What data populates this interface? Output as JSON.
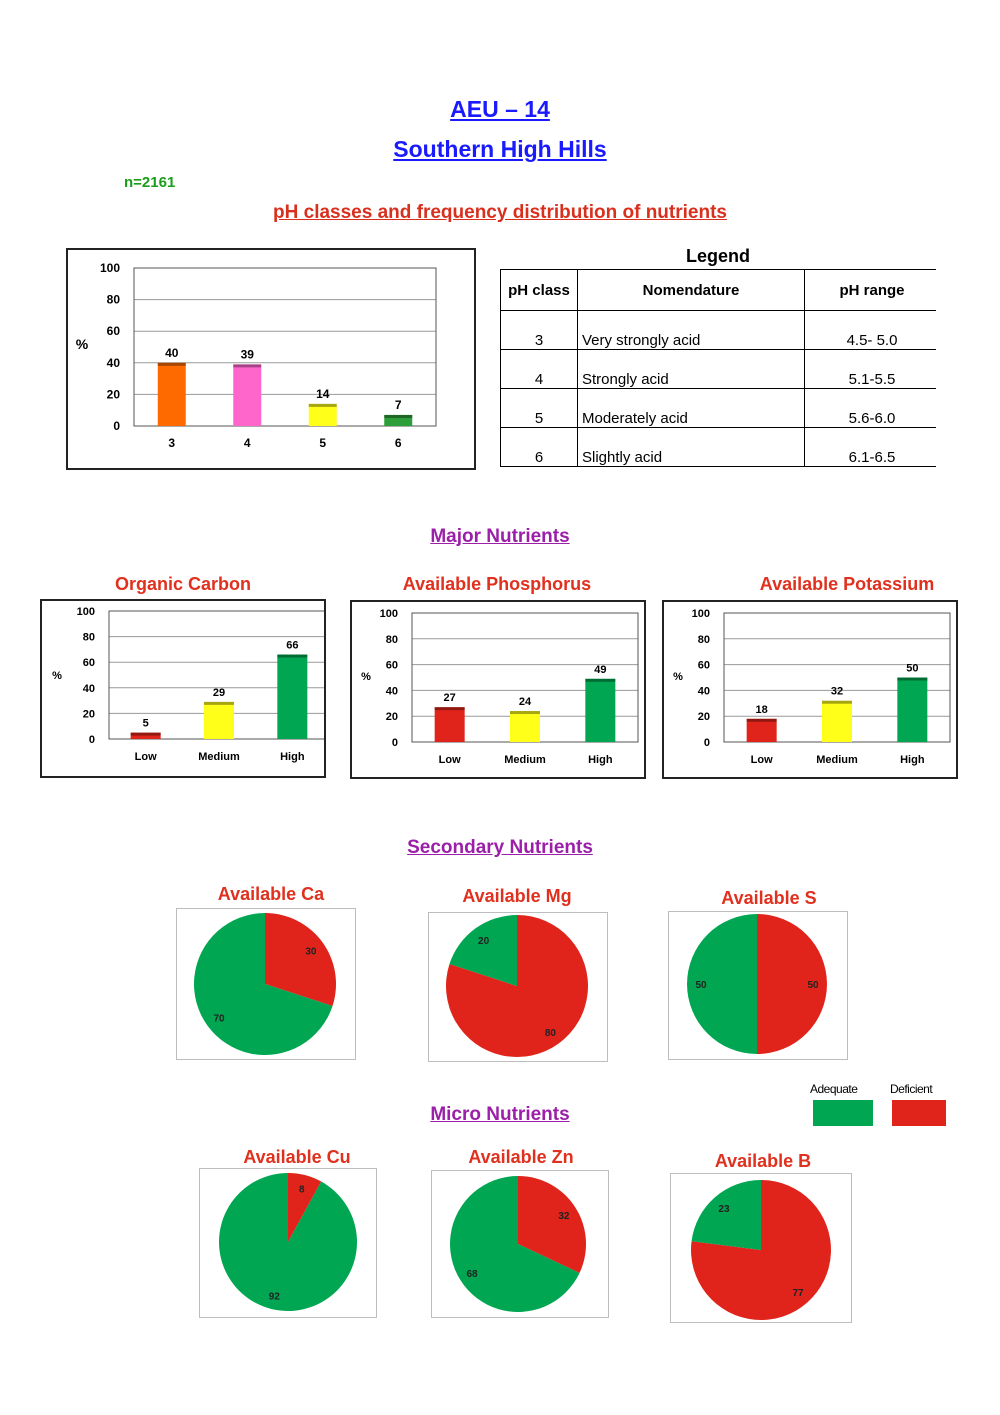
{
  "header": {
    "title": "AEU – 14",
    "subtitle": "Southern High Hills",
    "sample_size": "n=2161",
    "ph_section_title": "pH classes and frequency distribution of nutrients"
  },
  "legend_table": {
    "title": "Legend",
    "headers": [
      "pH class",
      "Nomendature",
      "pH range"
    ],
    "rows": [
      {
        "cls": "3",
        "name": "Very strongly acid",
        "range": "4.5- 5.0"
      },
      {
        "cls": "4",
        "name": "Strongly acid",
        "range": "5.1-5.5"
      },
      {
        "cls": "5",
        "name": "Moderately acid",
        "range": "5.6-6.0"
      },
      {
        "cls": "6",
        "name": "Slightly acid",
        "range": "6.1-6.5"
      }
    ]
  },
  "sections": {
    "major": "Major Nutrients",
    "secondary": "Secondary Nutrients",
    "micro": "Micro Nutrients"
  },
  "pie_legend": {
    "adequate": "Adequate",
    "deficient": "Deficient",
    "adequate_color": "#00a651",
    "deficient_color": "#e0241b"
  },
  "chart_data": [
    {
      "id": "ph",
      "type": "bar",
      "title": "",
      "ylabel": "%",
      "ylim": [
        0,
        100
      ],
      "yticks": [
        0,
        20,
        40,
        60,
        80,
        100
      ],
      "categories": [
        "3",
        "4",
        "5",
        "6"
      ],
      "values": [
        40,
        39,
        14,
        7
      ],
      "colors": [
        "#ff6a00",
        "#ff66cc",
        "#ffff1a",
        "#2e9e3a"
      ],
      "grid": true
    },
    {
      "id": "oc",
      "type": "bar",
      "title": "Organic Carbon",
      "ylabel": "%",
      "ylim": [
        0,
        100
      ],
      "yticks": [
        0,
        20,
        40,
        60,
        80,
        100
      ],
      "categories": [
        "Low",
        "Medium",
        "High"
      ],
      "values": [
        5,
        29,
        66
      ],
      "colors": [
        "#e0241b",
        "#ffff1a",
        "#00a651"
      ],
      "grid": true
    },
    {
      "id": "p",
      "type": "bar",
      "title": "Available Phosphorus",
      "ylabel": "%",
      "ylim": [
        0,
        100
      ],
      "yticks": [
        0,
        20,
        40,
        60,
        80,
        100
      ],
      "categories": [
        "Low",
        "Medium",
        "High"
      ],
      "values": [
        27,
        24,
        49
      ],
      "colors": [
        "#e0241b",
        "#ffff1a",
        "#00a651"
      ],
      "grid": true
    },
    {
      "id": "k",
      "type": "bar",
      "title": "Available Potassium",
      "ylabel": "%",
      "ylim": [
        0,
        100
      ],
      "yticks": [
        0,
        20,
        40,
        60,
        80,
        100
      ],
      "categories": [
        "Low",
        "Medium",
        "High"
      ],
      "values": [
        18,
        32,
        50
      ],
      "colors": [
        "#e0241b",
        "#ffff1a",
        "#00a651"
      ],
      "grid": true
    },
    {
      "id": "ca",
      "type": "pie",
      "title": "Available Ca",
      "series": [
        {
          "name": "Adequate",
          "value": 70
        },
        {
          "name": "Deficient",
          "value": 30
        }
      ]
    },
    {
      "id": "mg",
      "type": "pie",
      "title": "Available Mg",
      "series": [
        {
          "name": "Adequate",
          "value": 20
        },
        {
          "name": "Deficient",
          "value": 80
        }
      ]
    },
    {
      "id": "s",
      "type": "pie",
      "title": "Available S",
      "series": [
        {
          "name": "Adequate",
          "value": 50
        },
        {
          "name": "Deficient",
          "value": 50
        }
      ]
    },
    {
      "id": "cu",
      "type": "pie",
      "title": "Available Cu",
      "series": [
        {
          "name": "Adequate",
          "value": 92
        },
        {
          "name": "Deficient",
          "value": 8
        }
      ]
    },
    {
      "id": "zn",
      "type": "pie",
      "title": "Available Zn",
      "series": [
        {
          "name": "Adequate",
          "value": 68
        },
        {
          "name": "Deficient",
          "value": 32
        }
      ]
    },
    {
      "id": "b",
      "type": "pie",
      "title": "Available B",
      "series": [
        {
          "name": "Adequate",
          "value": 23
        },
        {
          "name": "Deficient",
          "value": 77
        }
      ]
    }
  ]
}
